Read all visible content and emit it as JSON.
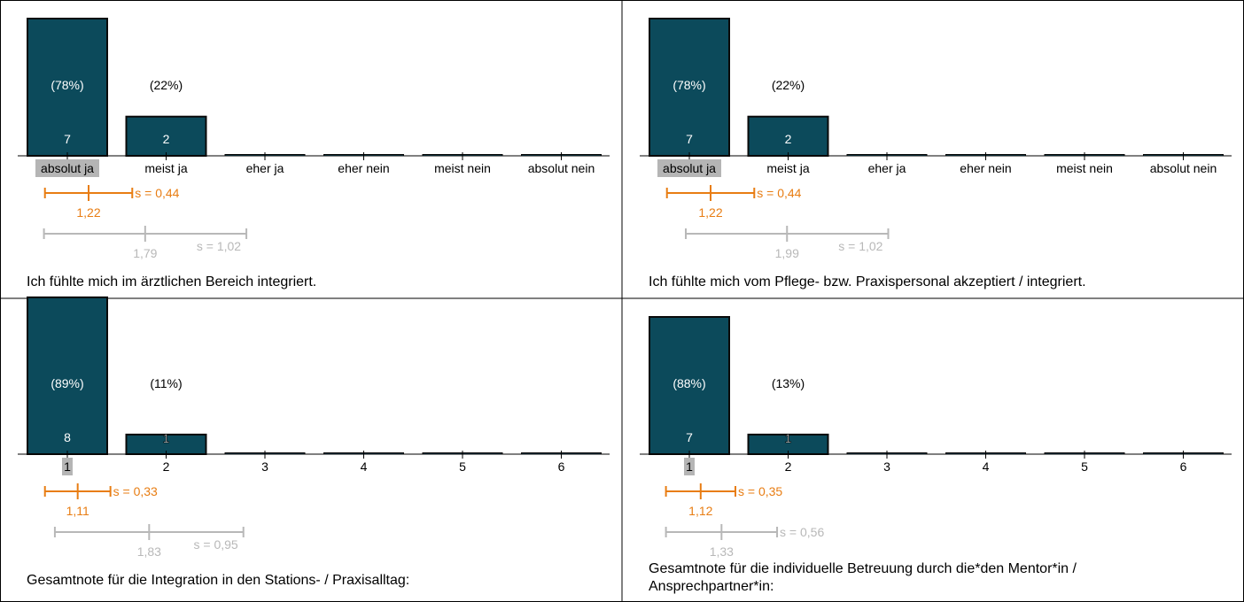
{
  "colors": {
    "bar": "#0c4a5b",
    "bar_stroke": "#0a0a0a",
    "accent": "#e87d13",
    "reference": "#b8b8b8",
    "highlight": "#b5b5b5",
    "border": "#000000"
  },
  "chart_data": [
    {
      "type": "bar",
      "title": "Ich fühlte mich im ärztlichen Bereich integriert.",
      "categories": [
        "absolut ja",
        "meist ja",
        "eher ja",
        "eher nein",
        "meist nein",
        "absolut nein"
      ],
      "values": [
        7,
        2,
        0,
        0,
        0,
        0
      ],
      "percent_labels": [
        "(78%)",
        "(22%)",
        "",
        "",
        "",
        ""
      ],
      "count_labels": [
        "7",
        "2",
        "",
        "",
        "",
        ""
      ],
      "highlighted_category": "absolut ja",
      "mean": {
        "value": 1.22,
        "label": "1,22",
        "s": 0.44,
        "s_label": "s = 0,44"
      },
      "reference": {
        "value": 1.79,
        "label": "1,79",
        "s": 1.02,
        "s_label": "s = 1,02"
      }
    },
    {
      "type": "bar",
      "title": "Ich fühlte mich vom Pflege- bzw. Praxispersonal akzeptiert / integriert.",
      "categories": [
        "absolut ja",
        "meist ja",
        "eher ja",
        "eher nein",
        "meist nein",
        "absolut nein"
      ],
      "values": [
        7,
        2,
        0,
        0,
        0,
        0
      ],
      "percent_labels": [
        "(78%)",
        "(22%)",
        "",
        "",
        "",
        ""
      ],
      "count_labels": [
        "7",
        "2",
        "",
        "",
        "",
        ""
      ],
      "highlighted_category": "absolut ja",
      "mean": {
        "value": 1.22,
        "label": "1,22",
        "s": 0.44,
        "s_label": "s = 0,44"
      },
      "reference": {
        "value": 1.99,
        "label": "1,99",
        "s": 1.02,
        "s_label": "s = 1,02"
      }
    },
    {
      "type": "bar",
      "title": "Gesamtnote für die Integration in den Stations- / Praxisalltag:",
      "categories": [
        "1",
        "2",
        "3",
        "4",
        "5",
        "6"
      ],
      "values": [
        8,
        1,
        0,
        0,
        0,
        0
      ],
      "percent_labels": [
        "(89%)",
        "(11%)",
        "",
        "",
        "",
        ""
      ],
      "count_labels": [
        "8",
        "1",
        "",
        "",
        "",
        ""
      ],
      "highlighted_category": "1",
      "mean": {
        "value": 1.11,
        "label": "1,11",
        "s": 0.33,
        "s_label": "s = 0,33"
      },
      "reference": {
        "value": 1.83,
        "label": "1,83",
        "s": 0.95,
        "s_label": "s = 0,95"
      }
    },
    {
      "type": "bar",
      "title": "Gesamtnote für die individuelle Betreuung durch die*den Mentor*in / Ansprechpartner*in:",
      "categories": [
        "1",
        "2",
        "3",
        "4",
        "5",
        "6"
      ],
      "values": [
        7,
        1,
        0,
        0,
        0,
        0
      ],
      "percent_labels": [
        "(88%)",
        "(13%)",
        "",
        "",
        "",
        ""
      ],
      "count_labels": [
        "7",
        "1",
        "",
        "",
        "",
        ""
      ],
      "highlighted_category": "1",
      "mean": {
        "value": 1.12,
        "label": "1,12",
        "s": 0.35,
        "s_label": "s = 0,35"
      },
      "reference": {
        "value": 1.33,
        "label": "1,33",
        "s": 0.56,
        "s_label": "s = 0,56"
      }
    }
  ]
}
